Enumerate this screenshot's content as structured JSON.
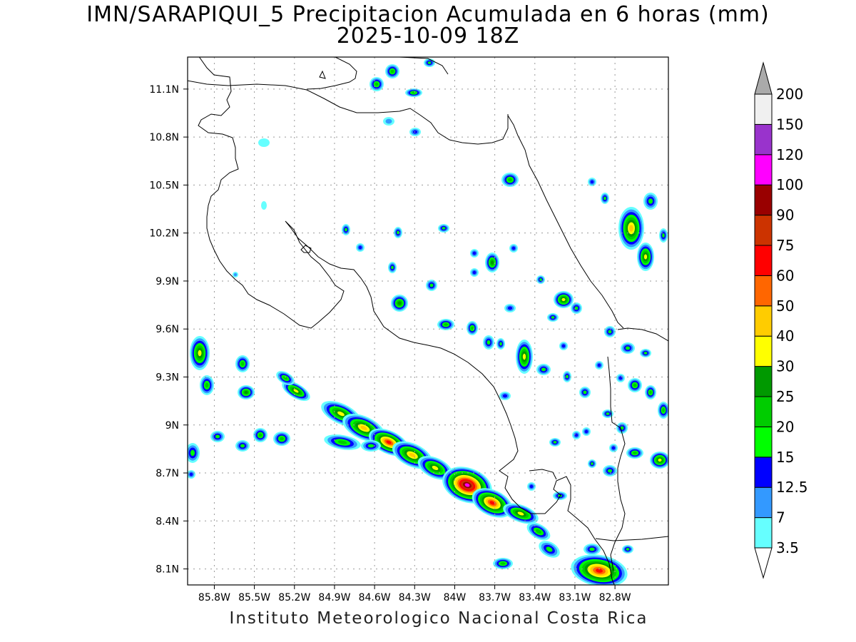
{
  "title_line1": "IMN/SARAPIQUI_5 Precipitacion Acumulada en 6 horas (mm)",
  "title_line2": "2025-10-09 18Z",
  "footer": "Instituto Meteorologico Nacional Costa Rica",
  "map": {
    "lon_range": [
      -86.0,
      -82.4
    ],
    "lat_range": [
      8.0,
      11.3
    ],
    "lat_ticks": [
      {
        "value": 11.1,
        "label": "11.1N"
      },
      {
        "value": 10.8,
        "label": "10.8N"
      },
      {
        "value": 10.5,
        "label": "10.5N"
      },
      {
        "value": 10.2,
        "label": "10.2N"
      },
      {
        "value": 9.9,
        "label": "9.9N"
      },
      {
        "value": 9.6,
        "label": "9.6N"
      },
      {
        "value": 9.3,
        "label": "9.3N"
      },
      {
        "value": 9.0,
        "label": "9N"
      },
      {
        "value": 8.7,
        "label": "8.7N"
      },
      {
        "value": 8.4,
        "label": "8.4N"
      },
      {
        "value": 8.1,
        "label": "8.1N"
      }
    ],
    "lon_ticks": [
      {
        "value": -85.8,
        "label": "85.8W"
      },
      {
        "value": -85.5,
        "label": "85.5W"
      },
      {
        "value": -85.2,
        "label": "85.2W"
      },
      {
        "value": -84.9,
        "label": "84.9W"
      },
      {
        "value": -84.6,
        "label": "84.6W"
      },
      {
        "value": -84.3,
        "label": "84.3W"
      },
      {
        "value": -84.0,
        "label": "84W"
      },
      {
        "value": -83.7,
        "label": "83.7W"
      },
      {
        "value": -83.4,
        "label": "83.4W"
      },
      {
        "value": -83.1,
        "label": "83.1W"
      },
      {
        "value": -82.8,
        "label": "82.8W"
      }
    ],
    "grid": true
  },
  "legend": {
    "levels": [
      "3.5",
      "7",
      "12.5",
      "15",
      "20",
      "25",
      "30",
      "40",
      "50",
      "60",
      "75",
      "90",
      "100",
      "120",
      "150",
      "200"
    ],
    "colors": [
      "#66ffff",
      "#3399ff",
      "#0000ff",
      "#00ff00",
      "#00cc00",
      "#009900",
      "#ffff00",
      "#ffcc00",
      "#ff6600",
      "#ff0000",
      "#cc3300",
      "#990000",
      "#ff00ff",
      "#9933cc",
      "#f0f0f0"
    ],
    "low_color": "#ffffff",
    "high_color": "#aaaaaa"
  }
}
